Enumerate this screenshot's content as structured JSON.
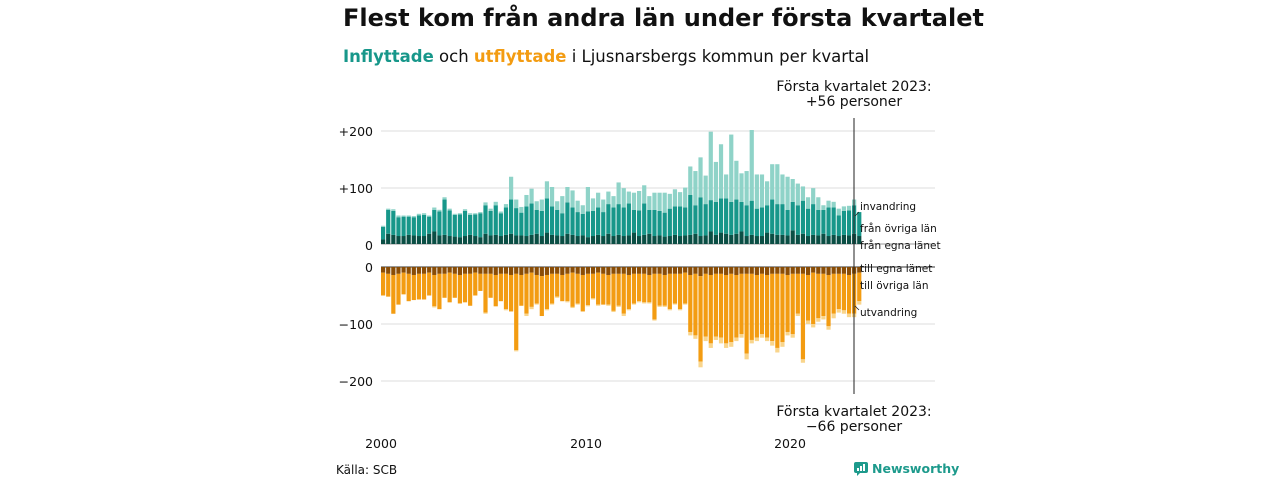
{
  "title": "Flest kom från andra län under första kvartalet",
  "subtitle": {
    "in_word": "Inflyttade",
    "mid": "och",
    "out_word": "utflyttade",
    "rest": "i Ljusnarsbergs kommun per kvartal"
  },
  "source": "Källa: SCB",
  "brand": "Newsworthy",
  "colors": {
    "immigration_in": "#8fd3c8",
    "other_counties_in": "#17978a",
    "own_county_in": "#0b4f45",
    "own_county_out": "#8a4d06",
    "other_counties_out": "#f39c12",
    "emigration_out": "#f9d58c"
  },
  "chart_data": {
    "type": "bar",
    "title": "Flest kom från andra län under första kvartalet",
    "xlabel": "",
    "ylabel": "",
    "x_ticks": [
      "2000",
      "2010",
      "2020"
    ],
    "y_ticks_in": [
      "+200",
      "+100",
      "0"
    ],
    "y_ticks_out": [
      "0",
      "−100",
      "−200"
    ],
    "ylim_in": [
      0,
      220
    ],
    "ylim_out": [
      -200,
      0
    ],
    "grid": true,
    "x_start": "2000 Q1",
    "x_end": "2023 Q1",
    "series_labels": {
      "invandring": "invandring",
      "fran_ovriga_lan": "från övriga län",
      "fran_egna_lanet": "från egna länet",
      "till_egna_lanet": "till egna länet",
      "till_ovriga_lan": "till övriga län",
      "utvandring": "utvandring"
    },
    "annotation_top": {
      "line1": "Första kvartalet 2023:",
      "line2": "+56 personer",
      "value": 56
    },
    "annotation_bottom": {
      "line1": "Första kvartalet 2023:",
      "line2": "−66 personer",
      "value": -66
    },
    "inflow_own_county": [
      8,
      18,
      16,
      14,
      14,
      16,
      15,
      14,
      14,
      18,
      22,
      15,
      16,
      14,
      13,
      12,
      14,
      16,
      14,
      12,
      18,
      15,
      16,
      14,
      16,
      18,
      15,
      15,
      14,
      16,
      18,
      14,
      20,
      16,
      15,
      14,
      18,
      16,
      14,
      15,
      12,
      14,
      16,
      14,
      18,
      14,
      16,
      14,
      15,
      20,
      14,
      16,
      18,
      14,
      15,
      13,
      14,
      16,
      14,
      15,
      16,
      18,
      14,
      15,
      22,
      16,
      20,
      18,
      16,
      18,
      22,
      14,
      16,
      14,
      14,
      20,
      18,
      16,
      16,
      15,
      24,
      16,
      18,
      14,
      16,
      15,
      18,
      14,
      16,
      14,
      16,
      15,
      18,
      14
    ],
    "inflow_other_counties": [
      22,
      42,
      42,
      33,
      34,
      32,
      32,
      36,
      37,
      30,
      38,
      42,
      62,
      45,
      38,
      40,
      44,
      35,
      38,
      42,
      50,
      43,
      52,
      40,
      48,
      60,
      48,
      40,
      52,
      55,
      42,
      44,
      60,
      50,
      45,
      40,
      55,
      48,
      42,
      38,
      45,
      44,
      48,
      42,
      52,
      50,
      54,
      50,
      56,
      40,
      45,
      55,
      42,
      46,
      43,
      42,
      48,
      50,
      52,
      49,
      70,
      50,
      68,
      55,
      55,
      58,
      60,
      62,
      58,
      60,
      52,
      54,
      60,
      48,
      50,
      48,
      60,
      54,
      54,
      45,
      50,
      52,
      58,
      48,
      54,
      45,
      42,
      50,
      48,
      36,
      42,
      44,
      50,
      42
    ],
    "inflow_immigration": [
      2,
      2,
      3,
      3,
      2,
      2,
      2,
      3,
      3,
      2,
      4,
      3,
      4,
      3,
      2,
      2,
      3,
      3,
      2,
      2,
      5,
      4,
      6,
      3,
      6,
      40,
      15,
      10,
      20,
      26,
      15,
      20,
      30,
      34,
      15,
      30,
      27,
      30,
      20,
      15,
      43,
      22,
      26,
      22,
      22,
      20,
      38,
      34,
      21,
      30,
      34,
      32,
      24,
      30,
      32,
      35,
      26,
      30,
      25,
      35,
      50,
      60,
      70,
      50,
      120,
      70,
      95,
      42,
      118,
      68,
      50,
      60,
      124,
      60,
      58,
      42,
      62,
      70,
      52,
      58,
      40,
      38,
      25,
      20,
      28,
      22,
      8,
      12,
      10,
      12,
      8,
      8,
      10,
      0
    ],
    "outflow_own_county": [
      -10,
      -12,
      -14,
      -12,
      -10,
      -12,
      -14,
      -12,
      -12,
      -10,
      -14,
      -12,
      -12,
      -10,
      -12,
      -14,
      -12,
      -12,
      -10,
      -12,
      -12,
      -12,
      -14,
      -12,
      -12,
      -14,
      -12,
      -14,
      -12,
      -10,
      -14,
      -16,
      -14,
      -12,
      -12,
      -14,
      -12,
      -10,
      -12,
      -14,
      -12,
      -12,
      -10,
      -12,
      -14,
      -12,
      -12,
      -12,
      -14,
      -12,
      -12,
      -12,
      -14,
      -12,
      -12,
      -14,
      -12,
      -12,
      -12,
      -10,
      -14,
      -12,
      -16,
      -12,
      -14,
      -12,
      -12,
      -14,
      -12,
      -14,
      -12,
      -12,
      -12,
      -14,
      -12,
      -14,
      -12,
      -12,
      -12,
      -14,
      -12,
      -12,
      -12,
      -14,
      -10,
      -12,
      -12,
      -14,
      -12,
      -12,
      -12,
      -14,
      -12,
      -10
    ],
    "outflow_other_counties": [
      -40,
      -40,
      -68,
      -54,
      -38,
      -48,
      -44,
      -45,
      -45,
      -40,
      -55,
      -62,
      -42,
      -52,
      -42,
      -50,
      -50,
      -56,
      -40,
      -30,
      -68,
      -42,
      -55,
      -48,
      -62,
      -64,
      -134,
      -54,
      -70,
      -60,
      -50,
      -70,
      -60,
      -52,
      -40,
      -46,
      -48,
      -60,
      -52,
      -64,
      -55,
      -43,
      -56,
      -54,
      -52,
      -65,
      -56,
      -70,
      -60,
      -52,
      -48,
      -50,
      -48,
      -80,
      -56,
      -54,
      -62,
      -52,
      -62,
      -54,
      -100,
      -108,
      -150,
      -110,
      -120,
      -110,
      -112,
      -120,
      -120,
      -110,
      -106,
      -140,
      -116,
      -110,
      -106,
      -110,
      -118,
      -130,
      -120,
      -100,
      -106,
      -70,
      -150,
      -80,
      -90,
      -78,
      -74,
      -90,
      -70,
      -62,
      -64,
      -68,
      -70,
      -50
    ],
    "outflow_emigration": [
      0,
      0,
      0,
      0,
      0,
      0,
      0,
      0,
      0,
      0,
      -2,
      0,
      0,
      0,
      0,
      0,
      0,
      0,
      0,
      0,
      -2,
      0,
      0,
      0,
      -2,
      0,
      -2,
      0,
      -4,
      -4,
      -2,
      0,
      -2,
      -2,
      -2,
      0,
      -2,
      -2,
      -2,
      0,
      -2,
      -2,
      -2,
      0,
      -2,
      -2,
      -2,
      -4,
      -2,
      -2,
      -2,
      -2,
      -2,
      -2,
      -2,
      -2,
      -2,
      -2,
      -2,
      -2,
      -6,
      -6,
      -10,
      -8,
      -8,
      -6,
      -10,
      -8,
      -8,
      -6,
      -6,
      -10,
      -6,
      -6,
      -6,
      -6,
      -8,
      -8,
      -8,
      -6,
      -6,
      -4,
      -6,
      -6,
      -6,
      -6,
      -6,
      -6,
      -8,
      -6,
      -6,
      -6,
      -6,
      -6
    ]
  }
}
